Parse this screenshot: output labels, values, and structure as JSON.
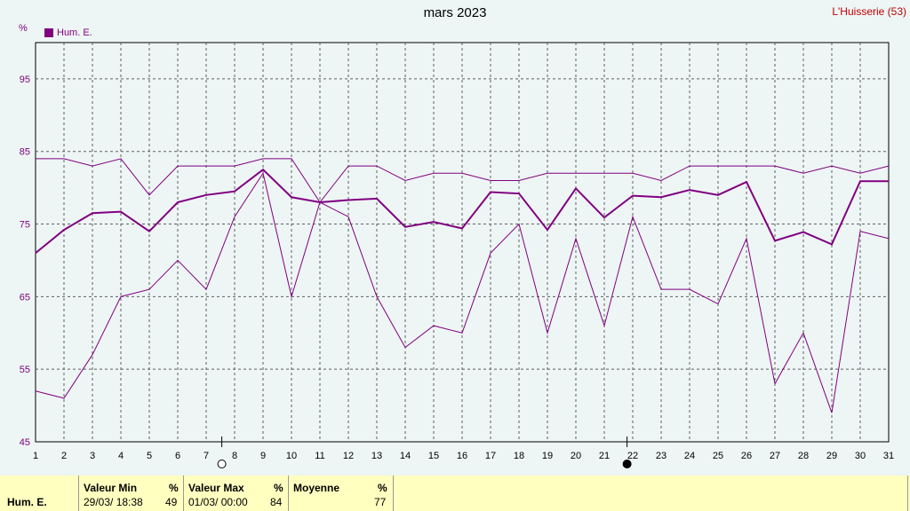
{
  "header": {
    "title": "mars 2023",
    "station": "L'Huisserie (53)",
    "unit": "%"
  },
  "legend": {
    "label": "Hum. E.",
    "color": "#800080"
  },
  "chart_data": {
    "type": "line",
    "x": [
      1,
      2,
      3,
      4,
      5,
      6,
      7,
      8,
      9,
      10,
      11,
      12,
      13,
      14,
      15,
      16,
      17,
      18,
      19,
      20,
      21,
      22,
      23,
      24,
      25,
      26,
      27,
      28,
      29,
      30,
      31
    ],
    "ylim": [
      45,
      100
    ],
    "yticks": [
      45,
      55,
      65,
      75,
      85,
      95
    ],
    "grid": true,
    "markers": [
      {
        "day": 7.55,
        "symbol": "open-circle"
      },
      {
        "day": 21.8,
        "symbol": "filled-circle"
      }
    ],
    "series": [
      {
        "name": "Hum. E.",
        "role": "mean",
        "values": [
          71,
          74.2,
          76.5,
          76.7,
          74,
          78,
          79,
          79.5,
          82.5,
          78.7,
          78,
          78.3,
          78.5,
          74.6,
          75.3,
          74.4,
          79.4,
          79.2,
          74.2,
          79.9,
          75.9,
          78.9,
          78.7,
          79.7,
          79,
          80.8,
          72.7,
          73.9,
          72.2,
          80.9,
          80.9
        ]
      },
      {
        "name": "",
        "role": "max",
        "values": [
          84,
          84,
          83,
          84,
          79,
          83,
          83,
          83,
          84,
          84,
          78,
          83,
          83,
          81,
          82,
          82,
          81,
          81,
          82,
          82,
          82,
          82,
          81,
          83,
          83,
          83,
          83,
          82,
          83,
          82,
          83
        ]
      },
      {
        "name": "",
        "role": "min",
        "values": [
          52,
          51,
          57,
          65,
          66,
          70,
          66,
          76,
          82,
          65,
          78,
          76,
          65,
          58,
          61,
          60,
          71,
          75,
          60,
          73,
          61,
          76,
          66,
          66,
          64,
          73,
          53,
          60,
          49,
          74,
          73
        ]
      }
    ]
  },
  "footer": {
    "row_label": "Hum. E.",
    "min": {
      "header": "Valeur Min",
      "unit": "%",
      "date": "29/03/  18:38",
      "value": "49"
    },
    "max": {
      "header": "Valeur Max",
      "unit": "%",
      "date": "01/03/  00:00",
      "value": "84"
    },
    "avg": {
      "header": "Moyenne",
      "unit": "%",
      "value": "77"
    }
  }
}
